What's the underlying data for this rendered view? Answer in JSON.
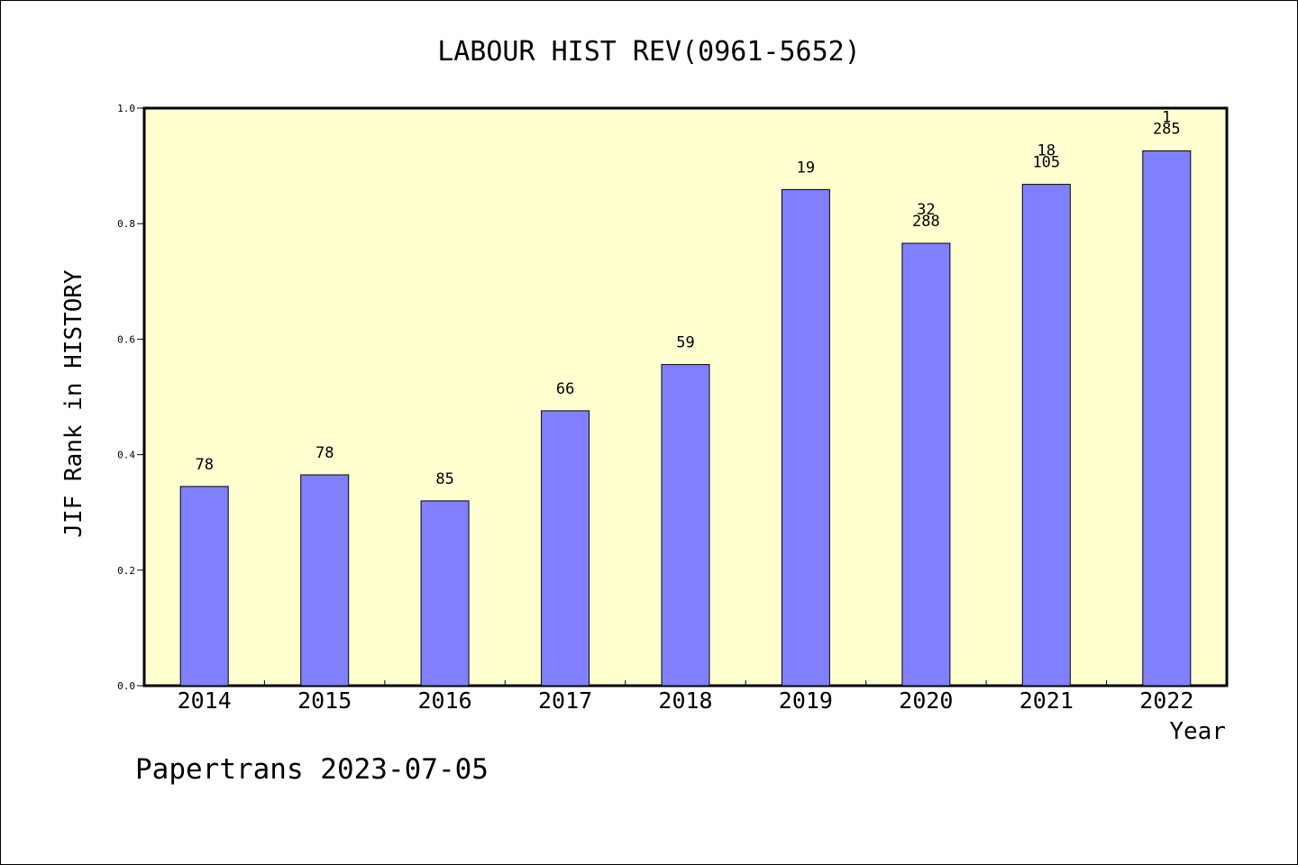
{
  "chart_data": {
    "type": "bar",
    "title": "LABOUR HIST REV(0961-5652)",
    "xlabel": "Year",
    "ylabel": "JIF Rank in HISTORY",
    "ylim": [
      0,
      1.0
    ],
    "yticks": [
      "0.0",
      "0.2",
      "0.4",
      "0.6",
      "0.8",
      "1.0"
    ],
    "grid": false,
    "categories": [
      "2014",
      "2015",
      "2016",
      "2017",
      "2018",
      "2019",
      "2020",
      "2021",
      "2022"
    ],
    "values": [
      0.345,
      0.365,
      0.32,
      0.476,
      0.556,
      0.859,
      0.766,
      0.868,
      0.926
    ],
    "bar_labels": [
      [
        "78"
      ],
      [
        "78"
      ],
      [
        "85"
      ],
      [
        "66"
      ],
      [
        "59"
      ],
      [
        "19"
      ],
      [
        "32",
        "288"
      ],
      [
        "18",
        "105"
      ],
      [
        "1",
        "285"
      ]
    ],
    "colors": {
      "bar": "#8080ff",
      "plot_background": "#ffffd0",
      "axis": "#000000"
    }
  },
  "footer": {
    "credit": "Papertrans 2023-07-05"
  }
}
